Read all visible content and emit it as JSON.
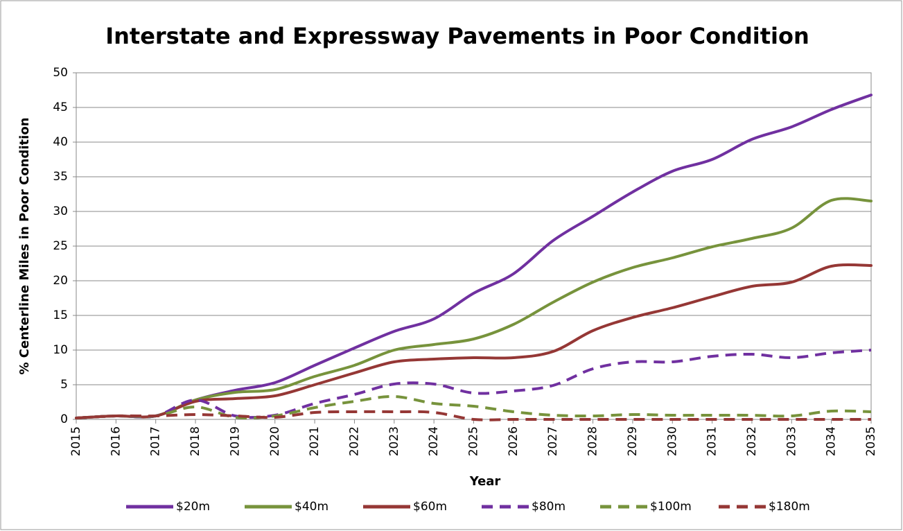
{
  "chart_data": {
    "type": "line",
    "title": "Interstate and Expressway Pavements in Poor Condition",
    "xlabel": "Year",
    "ylabel": "% Centerline Miles in Poor Condition",
    "x": [
      2015,
      2016,
      2017,
      2018,
      2019,
      2020,
      2021,
      2022,
      2023,
      2024,
      2025,
      2026,
      2027,
      2028,
      2029,
      2030,
      2031,
      2032,
      2033,
      2034,
      2035
    ],
    "xlim": [
      2015,
      2035
    ],
    "xticks": [
      2015,
      2016,
      2017,
      2018,
      2019,
      2020,
      2021,
      2022,
      2023,
      2024,
      2025,
      2026,
      2027,
      2028,
      2029,
      2030,
      2031,
      2032,
      2033,
      2034,
      2035
    ],
    "ylim": [
      0,
      50
    ],
    "yticks": [
      0,
      5,
      10,
      15,
      20,
      25,
      30,
      35,
      40,
      45,
      50
    ],
    "grid": true,
    "legend": "bottom",
    "series": [
      {
        "name": "$20m",
        "color": "#7030a0",
        "dashed": false,
        "values": [
          0.2,
          0.5,
          0.5,
          2.8,
          4.2,
          5.3,
          7.8,
          10.3,
          12.7,
          14.5,
          18.2,
          21.0,
          25.8,
          29.3,
          32.8,
          35.8,
          37.5,
          40.4,
          42.2,
          44.7,
          46.8
        ]
      },
      {
        "name": "$40m",
        "color": "#77933c",
        "dashed": false,
        "values": [
          0.2,
          0.5,
          0.5,
          2.8,
          3.9,
          4.3,
          6.2,
          7.8,
          10.0,
          10.8,
          11.6,
          13.7,
          16.9,
          19.8,
          21.9,
          23.3,
          24.9,
          26.1,
          27.6,
          31.6,
          31.5
        ]
      },
      {
        "name": "$60m",
        "color": "#953735",
        "dashed": false,
        "values": [
          0.2,
          0.5,
          0.5,
          2.6,
          3.0,
          3.4,
          5.0,
          6.7,
          8.3,
          8.7,
          8.9,
          8.9,
          9.8,
          12.8,
          14.7,
          16.1,
          17.7,
          19.2,
          19.8,
          22.1,
          22.2
        ]
      },
      {
        "name": "$80m",
        "color": "#7030a0",
        "dashed": true,
        "values": [
          0.2,
          0.5,
          0.5,
          2.8,
          0.5,
          0.6,
          2.3,
          3.6,
          5.1,
          5.1,
          3.8,
          4.1,
          4.9,
          7.3,
          8.3,
          8.3,
          9.1,
          9.4,
          8.9,
          9.6,
          10.0
        ]
      },
      {
        "name": "$100m",
        "color": "#77933c",
        "dashed": true,
        "values": [
          0.2,
          0.5,
          0.5,
          1.8,
          0.3,
          0.5,
          1.7,
          2.6,
          3.3,
          2.3,
          1.9,
          1.1,
          0.6,
          0.5,
          0.7,
          0.6,
          0.6,
          0.6,
          0.5,
          1.2,
          1.1
        ]
      },
      {
        "name": "$180m",
        "color": "#953735",
        "dashed": true,
        "values": [
          0.2,
          0.5,
          0.5,
          0.7,
          0.5,
          0.3,
          1.0,
          1.1,
          1.1,
          1.0,
          0,
          0,
          0,
          0,
          0,
          0,
          0,
          0,
          0,
          0,
          0
        ]
      }
    ]
  }
}
